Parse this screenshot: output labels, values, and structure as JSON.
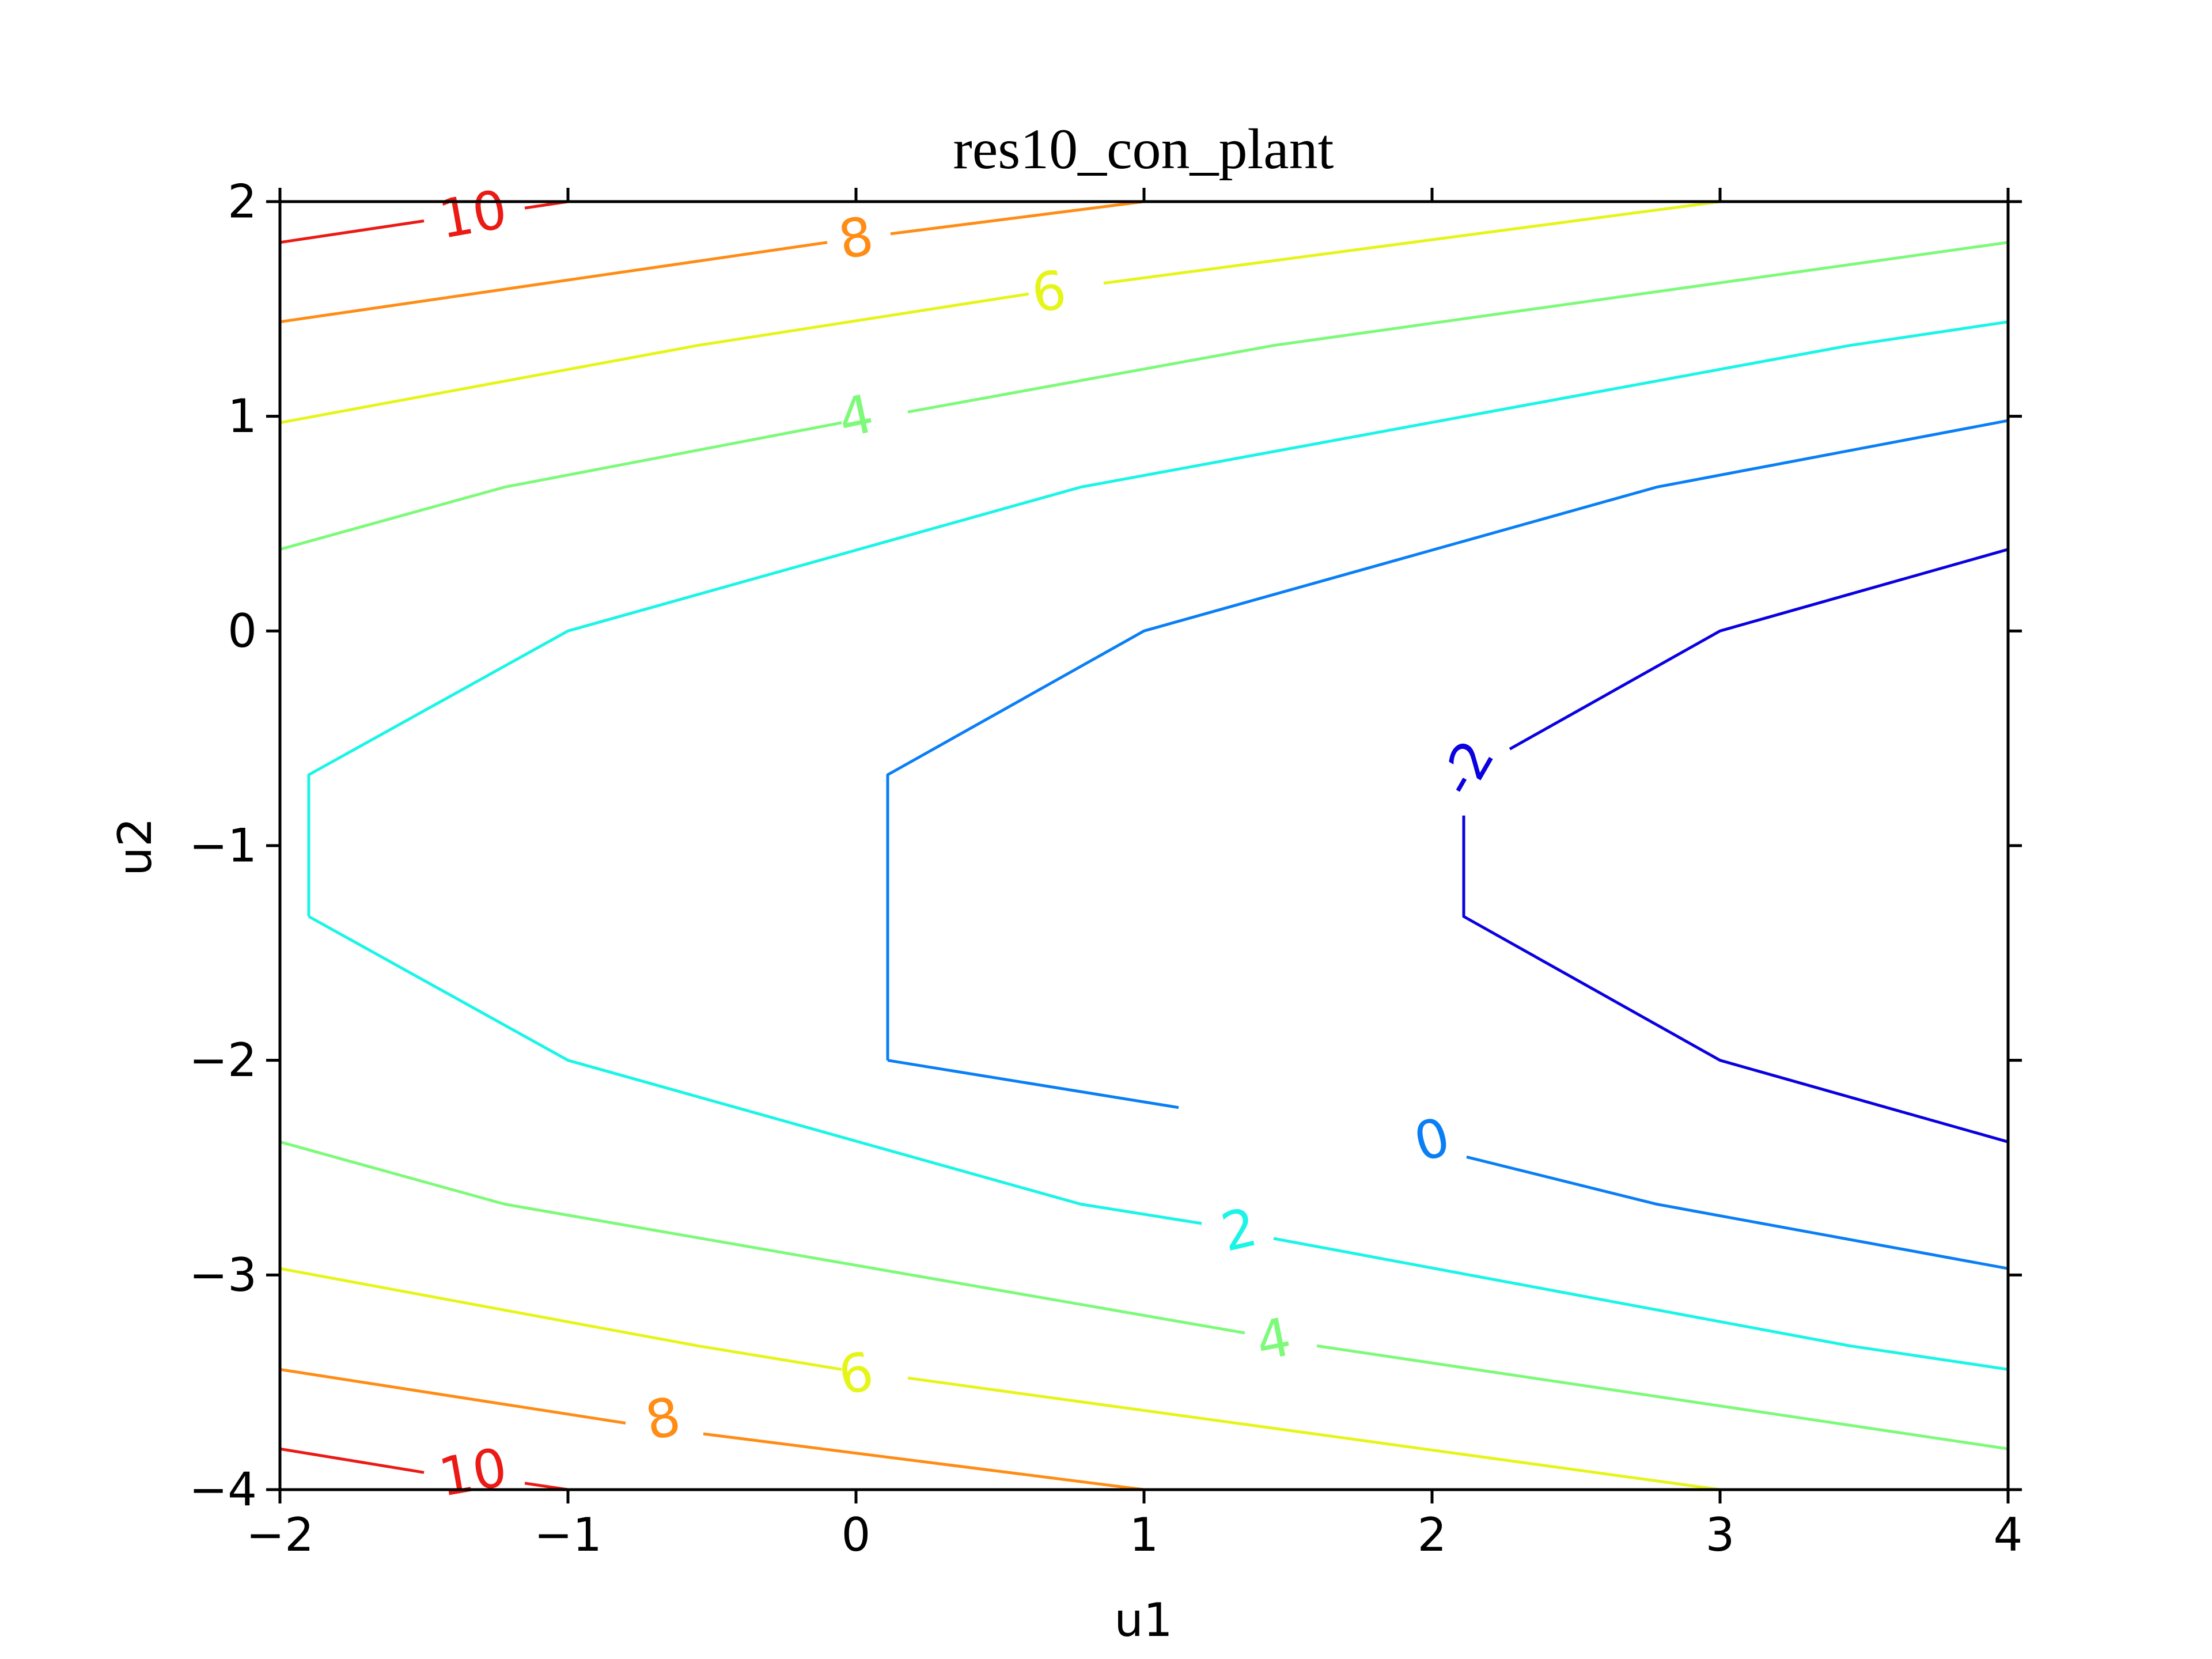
{
  "chart_data": {
    "type": "contour",
    "title": "res10_con_plant",
    "xlabel": "u1",
    "ylabel": "u2",
    "xlim": [
      -2,
      4
    ],
    "ylim": [
      -4,
      2
    ],
    "xticks": [
      -2,
      -1,
      0,
      1,
      2,
      3,
      4
    ],
    "yticks": [
      -4,
      -3,
      -2,
      -1,
      0,
      1,
      2
    ],
    "xtick_labels": [
      "−2",
      "−1",
      "0",
      "1",
      "2",
      "3",
      "4"
    ],
    "ytick_labels": [
      "−4",
      "−3",
      "−2",
      "−1",
      "0",
      "1",
      "2"
    ],
    "grid": false,
    "levels": [
      {
        "level": -2,
        "label": "-2",
        "color": "#0a00e0",
        "paths": [
          [
            [
              2.11,
              -0.86
            ],
            [
              2.11,
              -1.33
            ],
            [
              3.0,
              -2.0
            ],
            [
              4.0,
              -2.38
            ]
          ],
          [
            [
              2.27,
              -0.55
            ],
            [
              3.0,
              0.0
            ],
            [
              4.0,
              0.38
            ]
          ]
        ],
        "labels": [
          {
            "x": 2.12,
            "y": -0.64,
            "rot": -60
          }
        ]
      },
      {
        "level": 0,
        "label": "0",
        "color": "#0a7ff5",
        "paths": [
          [
            [
              1.12,
              -2.22
            ],
            [
              0.11,
              -2.0
            ]
          ],
          [
            [
              2.12,
              -2.45
            ],
            [
              2.78,
              -2.67
            ],
            [
              4.0,
              -2.97
            ]
          ],
          [
            [
              0.11,
              -2.0
            ],
            [
              0.11,
              -1.33
            ],
            [
              0.11,
              -0.67
            ],
            [
              1.0,
              0.0
            ],
            [
              2.78,
              0.67
            ],
            [
              4.0,
              0.98
            ]
          ]
        ],
        "labels": [
          {
            "x": 2.0,
            "y": -2.37,
            "rot": -15
          }
        ]
      },
      {
        "level": 2,
        "label": "2",
        "color": "#1af5e6",
        "paths": [
          [
            [
              -1.9,
              -1.33
            ],
            [
              -1.0,
              -2.0
            ],
            [
              0.78,
              -2.67
            ],
            [
              1.2,
              -2.76
            ]
          ],
          [
            [
              1.45,
              -2.83
            ],
            [
              3.45,
              -3.33
            ],
            [
              4.0,
              -3.44
            ]
          ],
          [
            [
              -1.9,
              -1.33
            ],
            [
              -1.9,
              -0.67
            ],
            [
              -1.0,
              0.0
            ],
            [
              0.78,
              0.67
            ],
            [
              3.45,
              1.33
            ],
            [
              4.0,
              1.44
            ]
          ]
        ],
        "labels": [
          {
            "x": 1.33,
            "y": -2.79,
            "rot": -13
          }
        ]
      },
      {
        "level": 4,
        "label": "4",
        "color": "#7dfa7a",
        "paths": [
          [
            [
              -2.0,
              -2.38
            ],
            [
              -1.22,
              -2.67
            ],
            [
              1.35,
              -3.27
            ]
          ],
          [
            [
              1.6,
              -3.33
            ],
            [
              4.0,
              -3.81
            ]
          ],
          [
            [
              -2.0,
              0.38
            ],
            [
              -1.22,
              0.67
            ],
            [
              -0.05,
              0.97
            ]
          ],
          [
            [
              0.18,
              1.02
            ],
            [
              1.45,
              1.33
            ],
            [
              4.0,
              1.81
            ]
          ]
        ],
        "labels": [
          {
            "x": 1.45,
            "y": -3.3,
            "rot": -11
          },
          {
            "x": 0.0,
            "y": 1.0,
            "rot": -12
          }
        ]
      },
      {
        "level": 6,
        "label": "6",
        "color": "#e6f519",
        "paths": [
          [
            [
              -2.0,
              -2.97
            ],
            [
              -0.55,
              -3.33
            ],
            [
              -0.05,
              -3.44
            ]
          ],
          [
            [
              0.18,
              -3.48
            ],
            [
              3.0,
              -4.0
            ]
          ],
          [
            [
              -2.0,
              0.97
            ],
            [
              -0.55,
              1.33
            ],
            [
              0.6,
              1.57
            ]
          ],
          [
            [
              0.86,
              1.62
            ],
            [
              3.0,
              2.0
            ]
          ]
        ],
        "labels": [
          {
            "x": 0.0,
            "y": -3.46,
            "rot": -11
          },
          {
            "x": 0.67,
            "y": 1.58,
            "rot": -9
          }
        ]
      },
      {
        "level": 8,
        "label": "8",
        "color": "#ff8c14",
        "paths": [
          [
            [
              -2.0,
              -3.44
            ],
            [
              -0.8,
              -3.69
            ]
          ],
          [
            [
              -0.53,
              -3.74
            ],
            [
              1.0,
              -4.0
            ]
          ],
          [
            [
              -2.0,
              1.44
            ],
            [
              -0.1,
              1.81
            ]
          ],
          [
            [
              0.12,
              1.85
            ],
            [
              1.0,
              2.0
            ]
          ]
        ],
        "labels": [
          {
            "x": -0.67,
            "y": -3.67,
            "rot": -11
          },
          {
            "x": 0.0,
            "y": 1.83,
            "rot": -10
          }
        ]
      },
      {
        "level": 10,
        "label": "10",
        "color": "#eb1a14",
        "paths": [
          [
            [
              -2.0,
              -3.81
            ],
            [
              -1.5,
              -3.92
            ]
          ],
          [
            [
              -1.15,
              -3.97
            ],
            [
              -1.0,
              -4.0
            ]
          ],
          [
            [
              -2.0,
              1.81
            ],
            [
              -1.5,
              1.91
            ]
          ],
          [
            [
              -1.15,
              1.97
            ],
            [
              -1.0,
              2.0
            ]
          ]
        ],
        "labels": [
          {
            "x": -1.33,
            "y": -3.92,
            "rot": -10
          },
          {
            "x": -1.33,
            "y": 1.94,
            "rot": -10
          }
        ]
      }
    ]
  }
}
